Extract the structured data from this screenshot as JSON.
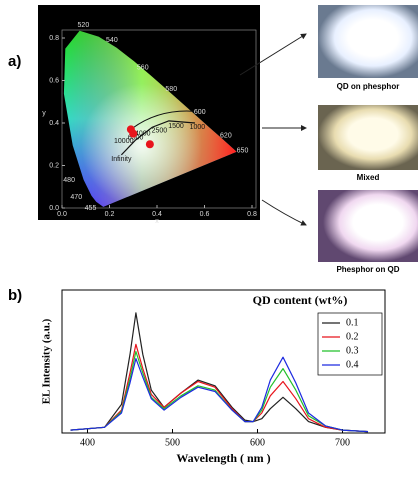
{
  "photos": [
    "QD on phesphor",
    "Mixed",
    "Phesphor on QD"
  ],
  "chart_data": [
    {
      "type": "scatter",
      "panel_label": "a)",
      "xlabel": "x",
      "ylabel": "y",
      "xlim": [
        0,
        0.8
      ],
      "ylim": [
        0,
        0.8
      ],
      "xticks": [
        {
          "value": 0,
          "label": "0.0"
        },
        0.2,
        0.4,
        0.6,
        0.8
      ],
      "yticks": [
        {
          "value": 0,
          "label": "0.0"
        },
        0.2,
        0.4,
        0.6,
        0.8
      ],
      "locus_labels": [
        "520",
        "540",
        "560",
        "580",
        "600",
        "620",
        "650",
        "480",
        "470",
        "455"
      ],
      "cct_labels": [
        "1000",
        "1500",
        "2500",
        "4000",
        "6500",
        "10000",
        "Infinity"
      ],
      "series": [
        {
          "color": "#e8141c",
          "x": [
            0.29,
            0.3,
            0.37
          ],
          "y": [
            0.37,
            0.35,
            0.3
          ]
        }
      ]
    },
    {
      "type": "line",
      "panel_label": "b)",
      "xlabel": "Wavelength ( nm )",
      "ylabel": "EL Intensity (a.u.)",
      "legend_title": "QD content (wt%)",
      "xlim": [
        370,
        750
      ],
      "ylim": [
        0,
        1
      ],
      "xticks": [
        400,
        500,
        600,
        700
      ],
      "x": [
        380,
        420,
        440,
        450,
        457,
        465,
        475,
        490,
        510,
        530,
        550,
        570,
        585,
        595,
        605,
        615,
        630,
        645,
        660,
        680,
        700,
        730
      ],
      "series": [
        {
          "name": "0.1",
          "color": "#222222",
          "values": [
            0.02,
            0.04,
            0.2,
            0.55,
            0.84,
            0.55,
            0.3,
            0.18,
            0.28,
            0.37,
            0.33,
            0.18,
            0.09,
            0.08,
            0.1,
            0.17,
            0.25,
            0.17,
            0.08,
            0.04,
            0.02,
            0.01
          ]
        },
        {
          "name": "0.2",
          "color": "#e8141c",
          "values": [
            0.02,
            0.04,
            0.16,
            0.42,
            0.62,
            0.45,
            0.27,
            0.18,
            0.28,
            0.36,
            0.32,
            0.17,
            0.08,
            0.08,
            0.14,
            0.26,
            0.36,
            0.24,
            0.1,
            0.04,
            0.02,
            0.01
          ]
        },
        {
          "name": "0.3",
          "color": "#22c02a",
          "values": [
            0.02,
            0.04,
            0.15,
            0.38,
            0.57,
            0.42,
            0.25,
            0.17,
            0.26,
            0.33,
            0.3,
            0.16,
            0.08,
            0.08,
            0.16,
            0.32,
            0.45,
            0.3,
            0.12,
            0.05,
            0.02,
            0.01
          ]
        },
        {
          "name": "0.4",
          "color": "#1d2be0",
          "values": [
            0.02,
            0.04,
            0.14,
            0.35,
            0.52,
            0.39,
            0.24,
            0.16,
            0.25,
            0.32,
            0.29,
            0.16,
            0.08,
            0.08,
            0.18,
            0.37,
            0.53,
            0.35,
            0.14,
            0.05,
            0.02,
            0.01
          ]
        }
      ]
    }
  ]
}
